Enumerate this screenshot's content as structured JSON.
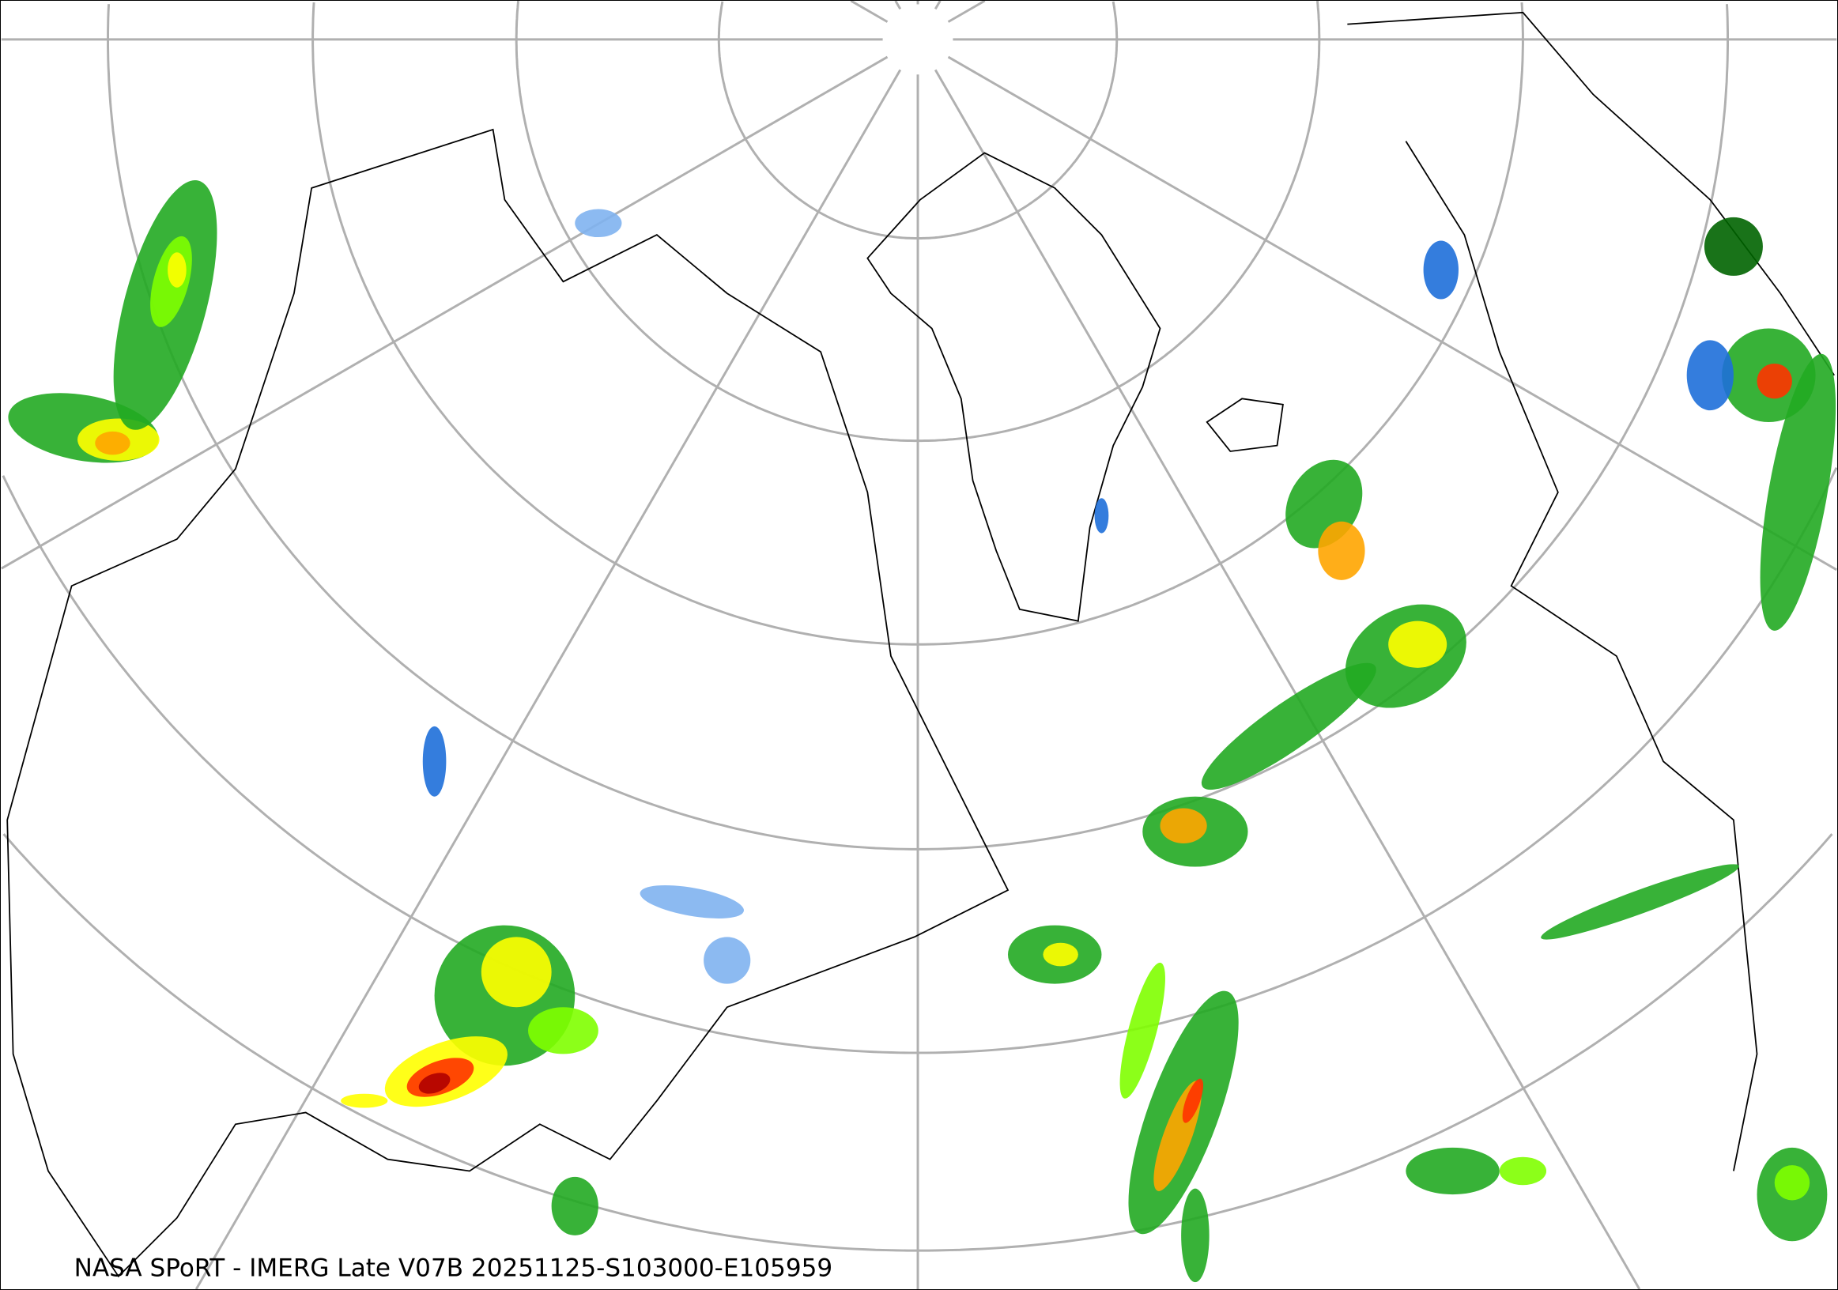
{
  "caption": "NASA SPoRT - IMERG Late V07B 20251125-S103000-E105959",
  "map": {
    "projection": "north-polar-stereographic",
    "graticule_color": "#b0b0b0",
    "coastline_color": "#000000",
    "precip_colors": [
      "#1e6fd9",
      "#7fb2f0",
      "#006400",
      "#22aa22",
      "#7fff00",
      "#ffff00",
      "#ffa500",
      "#ff3300",
      "#b00000"
    ]
  }
}
